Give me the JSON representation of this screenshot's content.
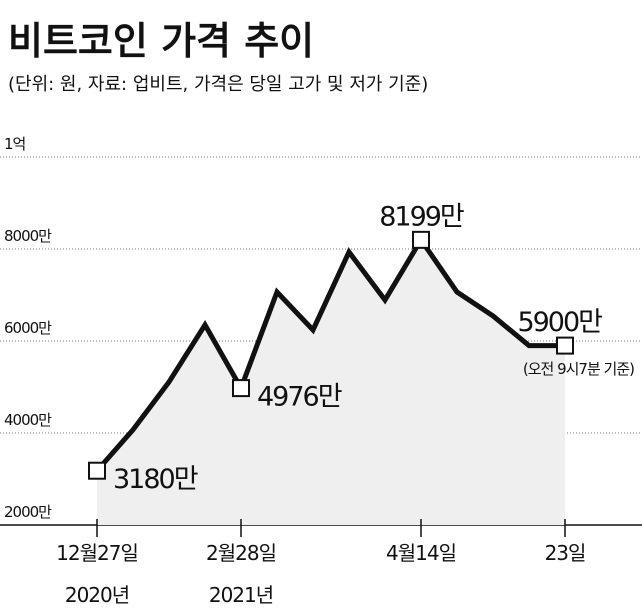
{
  "chart_data": {
    "type": "line",
    "title": "비트코인 가격 추이",
    "subtitle": "(단위: 원, 자료: 업비트, 가격은 당일 고가 및 저가 기준)",
    "categories": [
      "12월27일",
      null,
      null,
      null,
      "2월28일",
      null,
      null,
      null,
      null,
      "4월14일",
      null,
      null,
      null,
      "23일"
    ],
    "x_sublabels": [
      "2020년",
      null,
      null,
      null,
      "2021년",
      null,
      null,
      null,
      null,
      null,
      null,
      null,
      null,
      null
    ],
    "series": [
      {
        "color": "#111111",
        "values": [
          3180,
          4070,
          5110,
          6350,
          4976,
          7065,
          6240,
          7935,
          6890,
          8199,
          7065,
          6545,
          5900,
          5900
        ],
        "value_labels": [
          "3180만",
          null,
          null,
          null,
          "4976만",
          null,
          null,
          null,
          null,
          "8199만",
          null,
          null,
          null,
          "5900만"
        ]
      }
    ],
    "annotation": "(오전 9시7분 기준)",
    "ylim": [
      2000,
      10000
    ],
    "yticks": [
      {
        "value": 2000,
        "label": "2000만"
      },
      {
        "value": 4000,
        "label": "4000만"
      },
      {
        "value": 6000,
        "label": "6000만"
      },
      {
        "value": 8000,
        "label": "8000만"
      },
      {
        "value": 10000,
        "label": "1억"
      }
    ],
    "grid": true,
    "area_color": "#efefef"
  }
}
